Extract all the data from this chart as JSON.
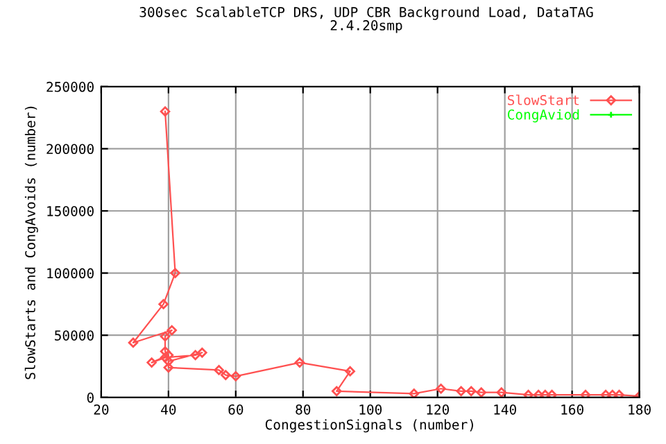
{
  "chart_data": {
    "type": "line",
    "title": "300sec ScalableTCP DRS, UDP CBR Background Load, DataTAG\n2.4.20smp",
    "xlabel": "CongestionSignals (number)",
    "ylabel": "SlowStarts and CongAvoids (number)",
    "series": [
      {
        "name": "SlowStart",
        "color": "#ff5050",
        "marker": "diamond",
        "x": [
          39,
          42,
          38.5,
          29.5,
          41,
          39,
          39,
          40,
          35,
          39,
          48,
          50,
          40,
          40,
          55,
          57,
          60,
          79,
          94,
          90,
          113,
          121,
          127,
          130,
          133,
          139,
          147,
          150,
          152,
          154,
          164,
          170,
          172,
          174,
          180
        ],
        "values": [
          230000,
          100000,
          75000,
          44000,
          54000,
          49000,
          37000,
          34000,
          28000,
          32000,
          34000,
          36000,
          29000,
          24000,
          22000,
          18000,
          17000,
          28000,
          21000,
          5000,
          3000,
          7000,
          5000,
          5000,
          4000,
          4000,
          2000,
          2000,
          2000,
          2000,
          2000,
          2000,
          2000,
          2000,
          1000
        ]
      },
      {
        "name": "CongAviod",
        "color": "#00ff00",
        "marker": "cross"
      }
    ],
    "xlim": [
      20,
      180
    ],
    "xticks": [
      20,
      40,
      60,
      80,
      100,
      120,
      140,
      160,
      180
    ],
    "ylim": [
      0,
      250000
    ],
    "yticks": [
      0,
      50000,
      100000,
      150000,
      200000,
      250000
    ],
    "grid": true,
    "legend": "top right"
  }
}
